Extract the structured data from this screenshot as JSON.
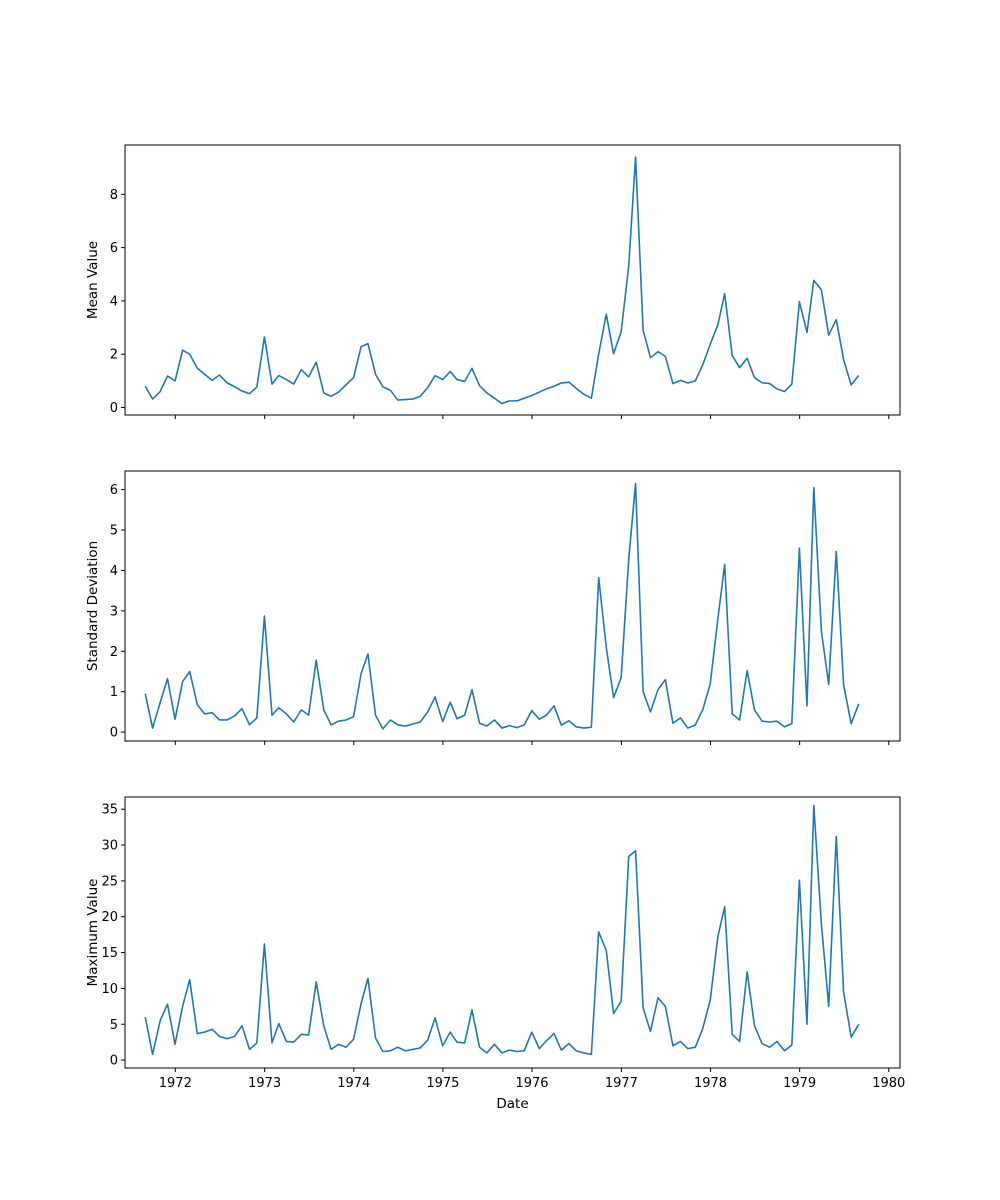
{
  "chart_data": {
    "type": "line",
    "layout": "3 vertically stacked subplots sharing the date x-axis",
    "xlabel": "Date",
    "x_tick_labels": [
      "1972",
      "1973",
      "1974",
      "1975",
      "1976",
      "1977",
      "1978",
      "1979",
      "1980"
    ],
    "xlim": [
      "1971-06-09",
      "1980-02-16"
    ],
    "line_color": "#1f77b4",
    "grid": false,
    "legend": "none",
    "x": [
      "1971-08-31",
      "1971-09-30",
      "1971-10-31",
      "1971-11-30",
      "1971-12-31",
      "1972-01-31",
      "1972-02-29",
      "1972-03-31",
      "1972-04-30",
      "1972-05-31",
      "1972-06-30",
      "1972-07-31",
      "1972-08-31",
      "1972-09-30",
      "1972-10-31",
      "1972-11-30",
      "1972-12-31",
      "1973-01-31",
      "1973-02-28",
      "1973-03-31",
      "1973-04-30",
      "1973-05-31",
      "1973-06-30",
      "1973-07-31",
      "1973-08-31",
      "1973-09-30",
      "1973-10-31",
      "1973-11-30",
      "1973-12-31",
      "1974-01-31",
      "1974-02-28",
      "1974-03-31",
      "1974-04-30",
      "1974-05-31",
      "1974-06-30",
      "1974-07-31",
      "1974-08-31",
      "1974-09-30",
      "1974-10-31",
      "1974-11-30",
      "1974-12-31",
      "1975-01-31",
      "1975-02-28",
      "1975-03-31",
      "1975-04-30",
      "1975-05-31",
      "1975-06-30",
      "1975-07-31",
      "1975-08-31",
      "1975-09-30",
      "1975-10-31",
      "1975-11-30",
      "1975-12-31",
      "1976-01-31",
      "1976-02-29",
      "1976-03-31",
      "1976-04-30",
      "1976-05-31",
      "1976-06-30",
      "1976-07-31",
      "1976-08-31",
      "1976-09-30",
      "1976-10-31",
      "1976-11-30",
      "1976-12-31",
      "1977-01-31",
      "1977-02-28",
      "1977-03-31",
      "1977-04-30",
      "1977-05-31",
      "1977-06-30",
      "1977-07-31",
      "1977-08-31",
      "1977-09-30",
      "1977-10-31",
      "1977-11-30",
      "1977-12-31",
      "1978-01-31",
      "1978-02-28",
      "1978-03-31",
      "1978-04-30",
      "1978-05-31",
      "1978-06-30",
      "1978-07-31",
      "1978-08-31",
      "1978-09-30",
      "1978-10-31",
      "1978-11-30",
      "1978-12-31",
      "1979-01-31",
      "1979-02-28",
      "1979-03-31",
      "1979-04-30",
      "1979-05-31",
      "1979-06-30",
      "1979-07-31",
      "1979-08-31"
    ],
    "subplots": [
      {
        "ylabel": "Mean Value",
        "y_ticks": [
          0,
          2,
          4,
          6,
          8
        ],
        "ylim": [
          -0.28,
          9.85
        ],
        "values": [
          0.8,
          0.32,
          0.6,
          1.18,
          1.0,
          2.15,
          2.0,
          1.48,
          1.25,
          1.02,
          1.22,
          0.93,
          0.78,
          0.62,
          0.52,
          0.77,
          2.65,
          0.88,
          1.2,
          1.05,
          0.88,
          1.42,
          1.15,
          1.7,
          0.55,
          0.42,
          0.58,
          0.85,
          1.12,
          2.28,
          2.4,
          1.25,
          0.78,
          0.65,
          0.28,
          0.3,
          0.32,
          0.42,
          0.75,
          1.2,
          1.05,
          1.35,
          1.05,
          0.98,
          1.47,
          0.82,
          0.55,
          0.35,
          0.15,
          0.25,
          0.25,
          0.35,
          0.45,
          0.58,
          0.7,
          0.8,
          0.92,
          0.95,
          0.72,
          0.5,
          0.35,
          2.0,
          3.5,
          2.02,
          2.85,
          5.3,
          9.4,
          2.9,
          1.87,
          2.1,
          1.92,
          0.9,
          1.02,
          0.92,
          1.0,
          1.6,
          2.38,
          3.1,
          4.27,
          1.95,
          1.5,
          1.85,
          1.12,
          0.93,
          0.9,
          0.7,
          0.6,
          0.88,
          3.97,
          2.82,
          4.77,
          4.42,
          2.72,
          3.3,
          1.8,
          0.85,
          1.2
        ]
      },
      {
        "ylabel": "Standard Deviation",
        "y_ticks": [
          0,
          1,
          2,
          3,
          4,
          5,
          6
        ],
        "ylim": [
          -0.22,
          6.46
        ],
        "values": [
          0.95,
          0.1,
          0.73,
          1.32,
          0.32,
          1.25,
          1.5,
          0.68,
          0.45,
          0.48,
          0.3,
          0.3,
          0.4,
          0.58,
          0.18,
          0.35,
          2.87,
          0.42,
          0.6,
          0.45,
          0.25,
          0.55,
          0.42,
          1.78,
          0.55,
          0.18,
          0.27,
          0.3,
          0.38,
          1.45,
          1.93,
          0.42,
          0.08,
          0.3,
          0.18,
          0.15,
          0.2,
          0.25,
          0.5,
          0.87,
          0.26,
          0.74,
          0.33,
          0.42,
          1.05,
          0.22,
          0.15,
          0.3,
          0.1,
          0.16,
          0.11,
          0.18,
          0.53,
          0.32,
          0.42,
          0.65,
          0.17,
          0.28,
          0.13,
          0.1,
          0.12,
          3.82,
          2.1,
          0.85,
          1.35,
          4.28,
          6.15,
          1.0,
          0.5,
          1.05,
          1.3,
          0.22,
          0.35,
          0.1,
          0.18,
          0.55,
          1.2,
          2.8,
          4.15,
          0.45,
          0.3,
          1.52,
          0.55,
          0.27,
          0.25,
          0.27,
          0.13,
          0.21,
          4.55,
          0.65,
          6.05,
          2.5,
          1.18,
          4.47,
          1.17,
          0.21,
          0.7
        ]
      },
      {
        "ylabel": "Maximum Value",
        "y_ticks": [
          0,
          5,
          10,
          15,
          20,
          25,
          30,
          35
        ],
        "ylim": [
          -1.1,
          36.7
        ],
        "values": [
          6.0,
          0.8,
          5.5,
          7.8,
          2.2,
          7.5,
          11.2,
          3.7,
          3.9,
          4.3,
          3.3,
          3.0,
          3.3,
          4.8,
          1.5,
          2.4,
          16.2,
          2.4,
          5.1,
          2.6,
          2.5,
          3.6,
          3.5,
          10.9,
          4.8,
          1.5,
          2.2,
          1.8,
          2.9,
          7.9,
          11.4,
          3.1,
          1.2,
          1.3,
          1.8,
          1.3,
          1.5,
          1.7,
          2.8,
          5.9,
          2.0,
          3.9,
          2.5,
          2.4,
          7.0,
          1.8,
          1.0,
          2.2,
          1.0,
          1.4,
          1.2,
          1.3,
          3.9,
          1.6,
          2.7,
          3.7,
          1.4,
          2.3,
          1.3,
          1.0,
          0.8,
          17.9,
          15.3,
          6.5,
          8.2,
          28.4,
          29.2,
          7.3,
          4.0,
          8.7,
          7.5,
          2.0,
          2.6,
          1.6,
          1.8,
          4.4,
          8.4,
          17.2,
          21.4,
          3.6,
          2.6,
          12.3,
          4.8,
          2.3,
          1.8,
          2.6,
          1.3,
          2.1,
          25.1,
          5.0,
          35.5,
          19.0,
          7.5,
          31.2,
          9.5,
          3.2,
          5.0
        ]
      }
    ]
  }
}
